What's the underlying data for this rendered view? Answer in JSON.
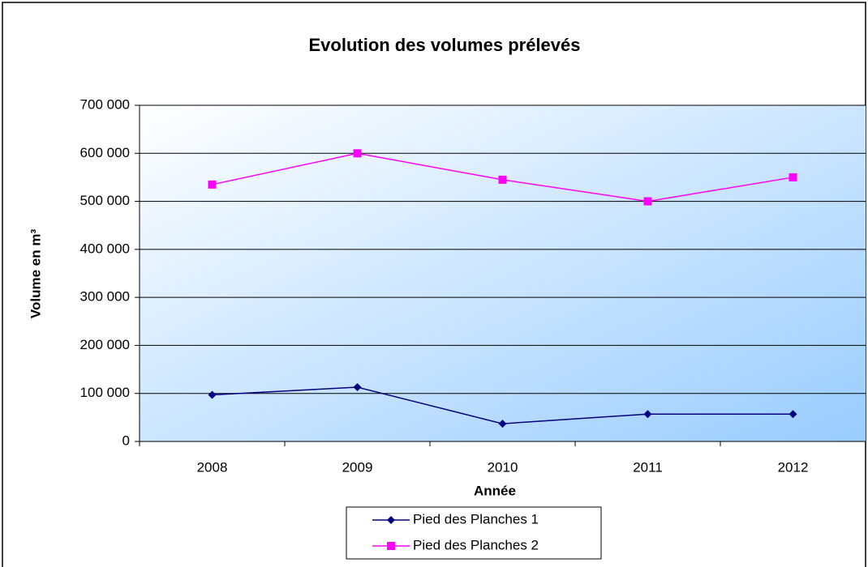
{
  "chart_data": {
    "type": "line",
    "title": "Evolution des volumes prélevés",
    "x_label": "Année",
    "y_label": "Volume en m³",
    "categories": [
      "2008",
      "2009",
      "2010",
      "2011",
      "2012"
    ],
    "series": [
      {
        "name": "Pied des Planches 1",
        "color": "#000080",
        "marker": "diamond",
        "values": [
          97000,
          113000,
          37000,
          57000,
          57000
        ]
      },
      {
        "name": "Pied des Planches 2",
        "color": "#ff00ff",
        "marker": "square",
        "values": [
          535000,
          600000,
          545000,
          500000,
          550000
        ]
      }
    ],
    "ylim": [
      0,
      700000
    ],
    "yticks": [
      0,
      {
        "value": 100000,
        "label": "100 000"
      },
      {
        "value": 200000,
        "label": "200 000"
      },
      {
        "value": 300000,
        "label": "300 000"
      },
      {
        "value": 400000,
        "label": "400 000"
      },
      {
        "value": 500000,
        "label": "500 000"
      },
      {
        "value": 600000,
        "label": "600 000"
      },
      {
        "value": 700000,
        "label": "700 000"
      }
    ],
    "grid": true,
    "legend": "bottom"
  }
}
